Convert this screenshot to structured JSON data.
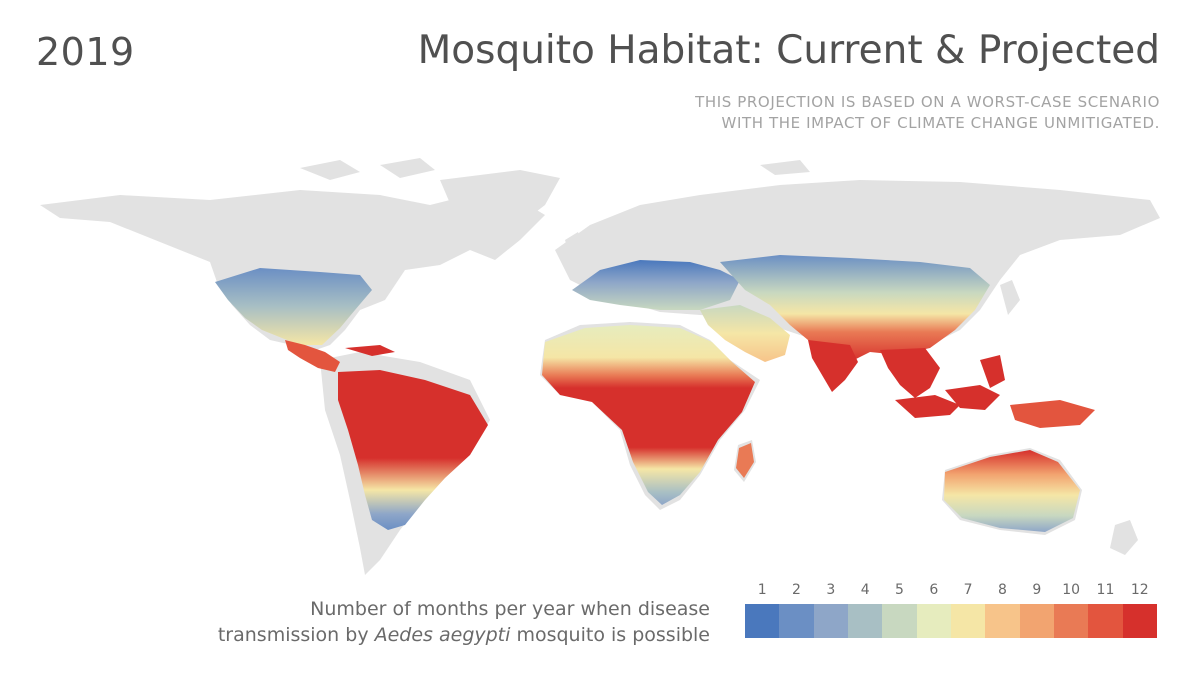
{
  "header": {
    "year": "2019",
    "title": "Mosquito Habitat: Current & Projected",
    "subtitle_line1": "THIS PROJECTION IS BASED ON A WORST-CASE SCENARIO",
    "subtitle_line2": "WITH THE IMPACT OF CLIMATE CHANGE UNMITIGATED."
  },
  "caption": {
    "line1": "Number of months per year when disease",
    "line2_pre": "transmission by ",
    "line2_em": "Aedes aegypti",
    "line2_post": " mosquito is possible"
  },
  "legend": {
    "labels": [
      "1",
      "2",
      "3",
      "4",
      "5",
      "6",
      "7",
      "8",
      "9",
      "10",
      "11",
      "12"
    ],
    "colors": [
      "#4a78bd",
      "#6b8fc4",
      "#8ea6c8",
      "#a8bfc4",
      "#c8d8c0",
      "#e6ecbe",
      "#f5e6a6",
      "#f7c48a",
      "#f2a470",
      "#e97a55",
      "#e3553e",
      "#d6302c"
    ]
  },
  "map": {
    "land_color": "#e2e2e2",
    "background_color": "#ffffff"
  }
}
